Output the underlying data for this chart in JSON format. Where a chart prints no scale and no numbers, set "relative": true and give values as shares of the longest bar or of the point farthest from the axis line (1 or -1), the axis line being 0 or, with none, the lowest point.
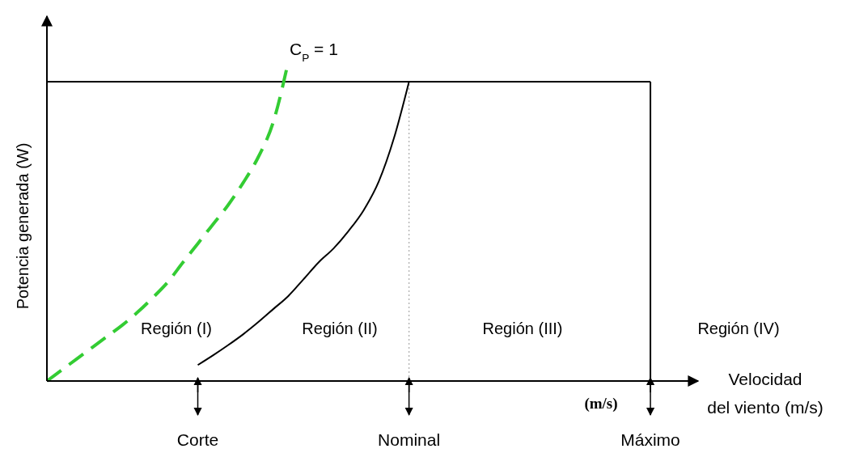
{
  "chart_data": {
    "type": "line",
    "relative": true,
    "ylabel": "Potencia generada (W)",
    "xlabel": "Velocidad del viento (m/s)",
    "tick_labels": "x",
    "marker": "none",
    "categories": [
      null,
      null,
      null,
      null,
      null,
      null,
      null,
      null,
      null,
      null,
      "Corte",
      null,
      null,
      null,
      null,
      null,
      null,
      null,
      null,
      null,
      null,
      null,
      null,
      null,
      "Nominal",
      null,
      null,
      null,
      null,
      null,
      null,
      null,
      null,
      null,
      null,
      null,
      null,
      null,
      null,
      null,
      "Máximo",
      null,
      null,
      null
    ],
    "series": [
      {
        "color": "#33cc33",
        "line_style": "dashed",
        "values": [
          0,
          0.035,
          0.07,
          0.105,
          0.14,
          0.175,
          0.215,
          0.26,
          0.309,
          0.37,
          0.43,
          0.49,
          0.55,
          0.62,
          0.7,
          0.81,
          1,
          null,
          null,
          null,
          null,
          null,
          null,
          null,
          null,
          null,
          null,
          null,
          null,
          null,
          null,
          null,
          null,
          null,
          null,
          null,
          null,
          null,
          null,
          null,
          null,
          null,
          null,
          null
        ]
      },
      {
        "color": "#000000",
        "line_style": "solid",
        "values": [
          null,
          null,
          null,
          null,
          null,
          null,
          null,
          null,
          null,
          null,
          0.05,
          0.08,
          0.112,
          0.146,
          0.184,
          0.225,
          0.266,
          0.318,
          0.371,
          0.415,
          0.47,
          0.535,
          0.625,
          0.76,
          0.937,
          null,
          null,
          null,
          null,
          null,
          null,
          null,
          null,
          null,
          null,
          null,
          null,
          null,
          null,
          null,
          null,
          null,
          null,
          null
        ]
      }
    ],
    "ref_lines": [
      {
        "axis": "y",
        "value": 0.937,
        "color": "#000000",
        "line_style": "solid"
      },
      {
        "axis": "x",
        "value": "Nominal",
        "color": "#aaaaaa",
        "line_style": "dotted"
      },
      {
        "axis": "x",
        "value": "Máximo",
        "color": "#000000",
        "line_style": "solid"
      }
    ],
    "annotations": [
      "C$_{P}$ = 1",
      "Región (I)",
      "Región (II)",
      "Región (III)",
      "Región (IV)",
      "(m/s)"
    ]
  }
}
